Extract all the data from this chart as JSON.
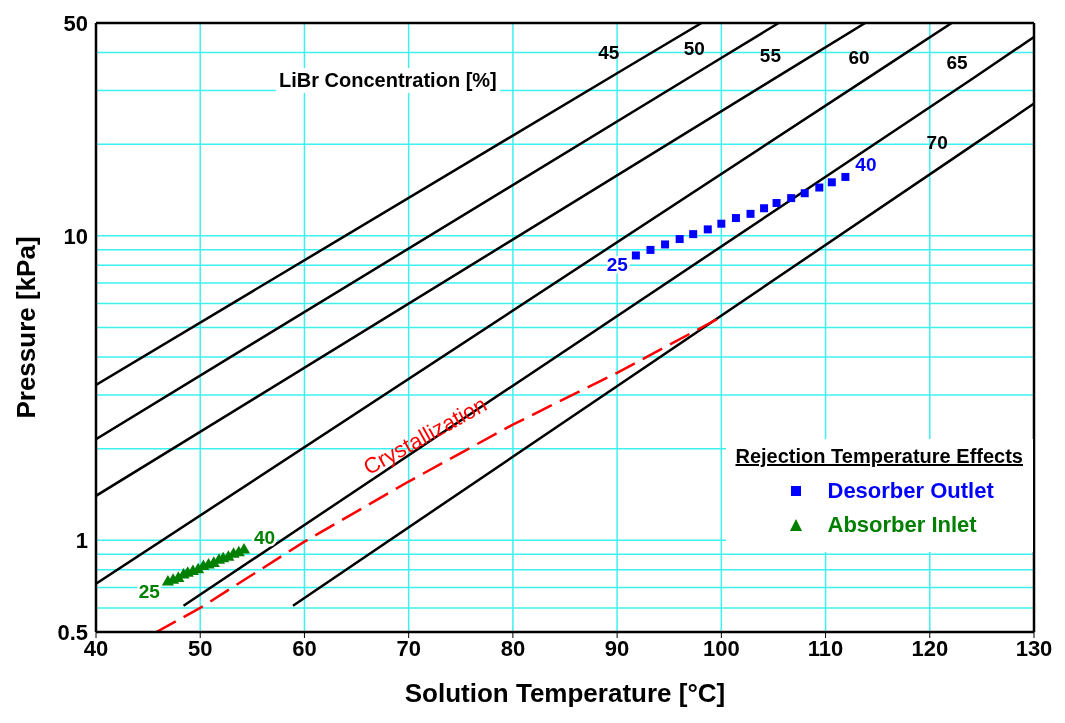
{
  "chart_data": {
    "type": "line",
    "xlabel": "Solution Temperature [°C]",
    "ylabel": "Pressure [kPa]",
    "legend_title": "Rejection Temperature Effects",
    "xlim": [
      40,
      130
    ],
    "xticks": [
      40,
      50,
      60,
      70,
      80,
      90,
      100,
      110,
      120,
      130
    ],
    "ylim": [
      0.5,
      50
    ],
    "yticks": [
      0.5,
      {
        "value": 0.6,
        "label": null
      },
      {
        "value": 0.7,
        "label": null
      },
      {
        "value": 0.8,
        "label": null
      },
      {
        "value": 0.9,
        "label": null
      },
      1,
      {
        "value": 2,
        "label": null
      },
      {
        "value": 3,
        "label": null
      },
      {
        "value": 4,
        "label": null
      },
      {
        "value": 5,
        "label": null
      },
      {
        "value": 6,
        "label": null
      },
      {
        "value": 7,
        "label": null
      },
      {
        "value": 8,
        "label": null
      },
      {
        "value": 9,
        "label": null
      },
      10,
      {
        "value": 20,
        "label": null
      },
      {
        "value": 30,
        "label": null
      },
      {
        "value": 40,
        "label": null
      },
      50
    ],
    "log": "y",
    "grid": true,
    "legend": "bottom right",
    "series": [
      {
        "type": "line",
        "name": "45",
        "color": "#000000",
        "marker": "none",
        "line_style": "solid",
        "x": [
          40,
          90.8,
          98.1
        ],
        "values": [
          3.24,
          35.5,
          50
        ]
      },
      {
        "type": "line",
        "name": "50",
        "color": "#000000",
        "marker": "none",
        "line_style": "solid",
        "x": [
          40,
          99.0,
          105.5
        ],
        "values": [
          2.15,
          36.6,
          50
        ]
      },
      {
        "type": "line",
        "name": "55",
        "color": "#000000",
        "marker": "none",
        "line_style": "solid",
        "x": [
          40,
          106.3,
          113.8
        ],
        "values": [
          1.4,
          34.8,
          50
        ]
      },
      {
        "type": "line",
        "name": "60",
        "color": "#000000",
        "marker": "none",
        "line_style": "solid",
        "x": [
          40,
          114.8,
          122.1
        ],
        "values": [
          0.72,
          34.3,
          50
        ]
      },
      {
        "type": "line",
        "name": "65",
        "color": "#000000",
        "marker": "none",
        "line_style": "solid",
        "x": [
          48.4,
          124.2,
          130
        ],
        "values": [
          0.61,
          33,
          45
        ]
      },
      {
        "type": "line",
        "name": "70",
        "color": "#000000",
        "marker": "none",
        "line_style": "solid",
        "x": [
          58.9,
          122.3,
          130
        ],
        "values": [
          0.61,
          18,
          27.2
        ]
      },
      {
        "type": "line",
        "name": "Crystallization",
        "color": "#ff0000",
        "marker": "none",
        "line_style": "dashed",
        "x": [
          45.8,
          50,
          60,
          70,
          80,
          90,
          99.7
        ],
        "values": [
          0.5,
          0.6,
          0.99,
          1.56,
          2.4,
          3.55,
          5.35
        ]
      },
      {
        "type": "scatter",
        "name": "Desorber Outlet",
        "color": "#0000ff",
        "marker": "square",
        "x": [
          91.8,
          93.2,
          94.6,
          96.0,
          97.3,
          98.7,
          100.0,
          101.4,
          102.8,
          104.1,
          105.3,
          106.7,
          108.0,
          109.4,
          110.6,
          111.9
        ],
        "values": [
          8.62,
          8.99,
          9.37,
          9.76,
          10.13,
          10.5,
          10.96,
          11.44,
          11.81,
          12.32,
          12.82,
          13.3,
          13.8,
          14.41,
          14.99,
          15.61
        ]
      },
      {
        "type": "scatter",
        "name": "Absorber Inlet",
        "color": "#008000",
        "marker": "triangle",
        "x": [
          46.9,
          47.4,
          47.9,
          48.4,
          48.8,
          49.3,
          49.8,
          50.3,
          50.8,
          51.3,
          51.8,
          52.2,
          52.7,
          53.2,
          53.7,
          54.2
        ],
        "values": [
          0.73,
          0.74,
          0.75,
          0.77,
          0.78,
          0.79,
          0.8,
          0.82,
          0.83,
          0.84,
          0.86,
          0.87,
          0.88,
          0.9,
          0.91,
          0.93
        ]
      }
    ],
    "annotations": [
      "LiBr Concentration [%]",
      {
        "text": "25",
        "x": 91.8,
        "y": 8.62
      },
      {
        "text": "40",
        "x": 111.9,
        "y": 15.61
      },
      {
        "text": "25",
        "x": 46.9,
        "y": 0.73
      },
      {
        "text": "40",
        "x": 54.2,
        "y": 0.93
      }
    ]
  }
}
